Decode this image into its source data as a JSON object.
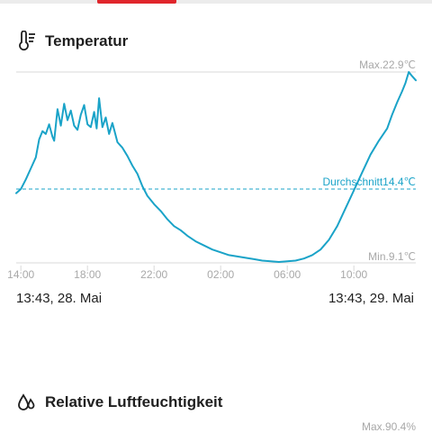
{
  "colors": {
    "accent": "#e0262c",
    "line": "#1aa3c8",
    "grid": "#d9d9d9",
    "muted": "#a8a8a8",
    "text": "#1f1f1f"
  },
  "temperature": {
    "title": "Temperatur",
    "icon": "thermometer-icon",
    "max_label": "Max.22.9℃",
    "min_label": "Min.9.1℃",
    "avg_label": "Durchschnitt14.4℃",
    "start_label": "13:43, 28. Mai",
    "end_label": "13:43, 29. Mai"
  },
  "humidity": {
    "title": "Relative Luftfeuchtigkeit",
    "icon": "water-drops-icon",
    "max_label": "Max.90.4%"
  },
  "chart_data": {
    "type": "line",
    "title": "Temperatur",
    "xlabel": "",
    "ylabel": "",
    "x_ticks": [
      "14:00",
      "18:00",
      "22:00",
      "02:00",
      "06:00",
      "10:00"
    ],
    "x_range_hours": [
      13.72,
      37.72
    ],
    "ylim": [
      9.1,
      22.9
    ],
    "max": 22.9,
    "min": 9.1,
    "average": 14.4,
    "grid": false,
    "series": [
      {
        "points": [
          [
            13.72,
            14.1
          ],
          [
            14.0,
            14.4
          ],
          [
            14.3,
            15.1
          ],
          [
            14.6,
            15.9
          ],
          [
            14.9,
            16.7
          ],
          [
            15.1,
            18.0
          ],
          [
            15.3,
            18.6
          ],
          [
            15.5,
            18.4
          ],
          [
            15.7,
            19.1
          ],
          [
            15.9,
            18.2
          ],
          [
            16.0,
            17.9
          ],
          [
            16.2,
            20.2
          ],
          [
            16.4,
            19.0
          ],
          [
            16.6,
            20.6
          ],
          [
            16.8,
            19.4
          ],
          [
            17.0,
            20.1
          ],
          [
            17.2,
            19.0
          ],
          [
            17.4,
            18.7
          ],
          [
            17.6,
            19.8
          ],
          [
            17.8,
            20.5
          ],
          [
            18.0,
            19.1
          ],
          [
            18.2,
            18.9
          ],
          [
            18.4,
            20.0
          ],
          [
            18.55,
            18.8
          ],
          [
            18.7,
            21.0
          ],
          [
            18.9,
            18.9
          ],
          [
            19.1,
            19.6
          ],
          [
            19.3,
            18.4
          ],
          [
            19.5,
            19.2
          ],
          [
            19.8,
            17.8
          ],
          [
            20.1,
            17.4
          ],
          [
            20.4,
            16.8
          ],
          [
            20.7,
            16.1
          ],
          [
            21.0,
            15.5
          ],
          [
            21.3,
            14.6
          ],
          [
            21.6,
            13.9
          ],
          [
            22.0,
            13.3
          ],
          [
            22.4,
            12.8
          ],
          [
            22.8,
            12.2
          ],
          [
            23.2,
            11.7
          ],
          [
            23.6,
            11.4
          ],
          [
            24.0,
            11.0
          ],
          [
            24.5,
            10.6
          ],
          [
            25.0,
            10.3
          ],
          [
            25.5,
            10.0
          ],
          [
            26.0,
            9.8
          ],
          [
            26.5,
            9.6
          ],
          [
            27.0,
            9.5
          ],
          [
            27.5,
            9.4
          ],
          [
            28.0,
            9.3
          ],
          [
            28.5,
            9.2
          ],
          [
            29.0,
            9.15
          ],
          [
            29.5,
            9.1
          ],
          [
            30.0,
            9.15
          ],
          [
            30.5,
            9.2
          ],
          [
            31.0,
            9.35
          ],
          [
            31.5,
            9.6
          ],
          [
            32.0,
            10.0
          ],
          [
            32.5,
            10.7
          ],
          [
            33.0,
            11.7
          ],
          [
            33.5,
            13.0
          ],
          [
            34.0,
            14.3
          ],
          [
            34.5,
            15.6
          ],
          [
            35.0,
            16.9
          ],
          [
            35.5,
            17.9
          ],
          [
            36.0,
            18.8
          ],
          [
            36.3,
            19.8
          ],
          [
            36.6,
            20.7
          ],
          [
            36.9,
            21.5
          ],
          [
            37.1,
            22.1
          ],
          [
            37.3,
            22.9
          ],
          [
            37.5,
            22.6
          ],
          [
            37.72,
            22.3
          ]
        ]
      }
    ]
  }
}
